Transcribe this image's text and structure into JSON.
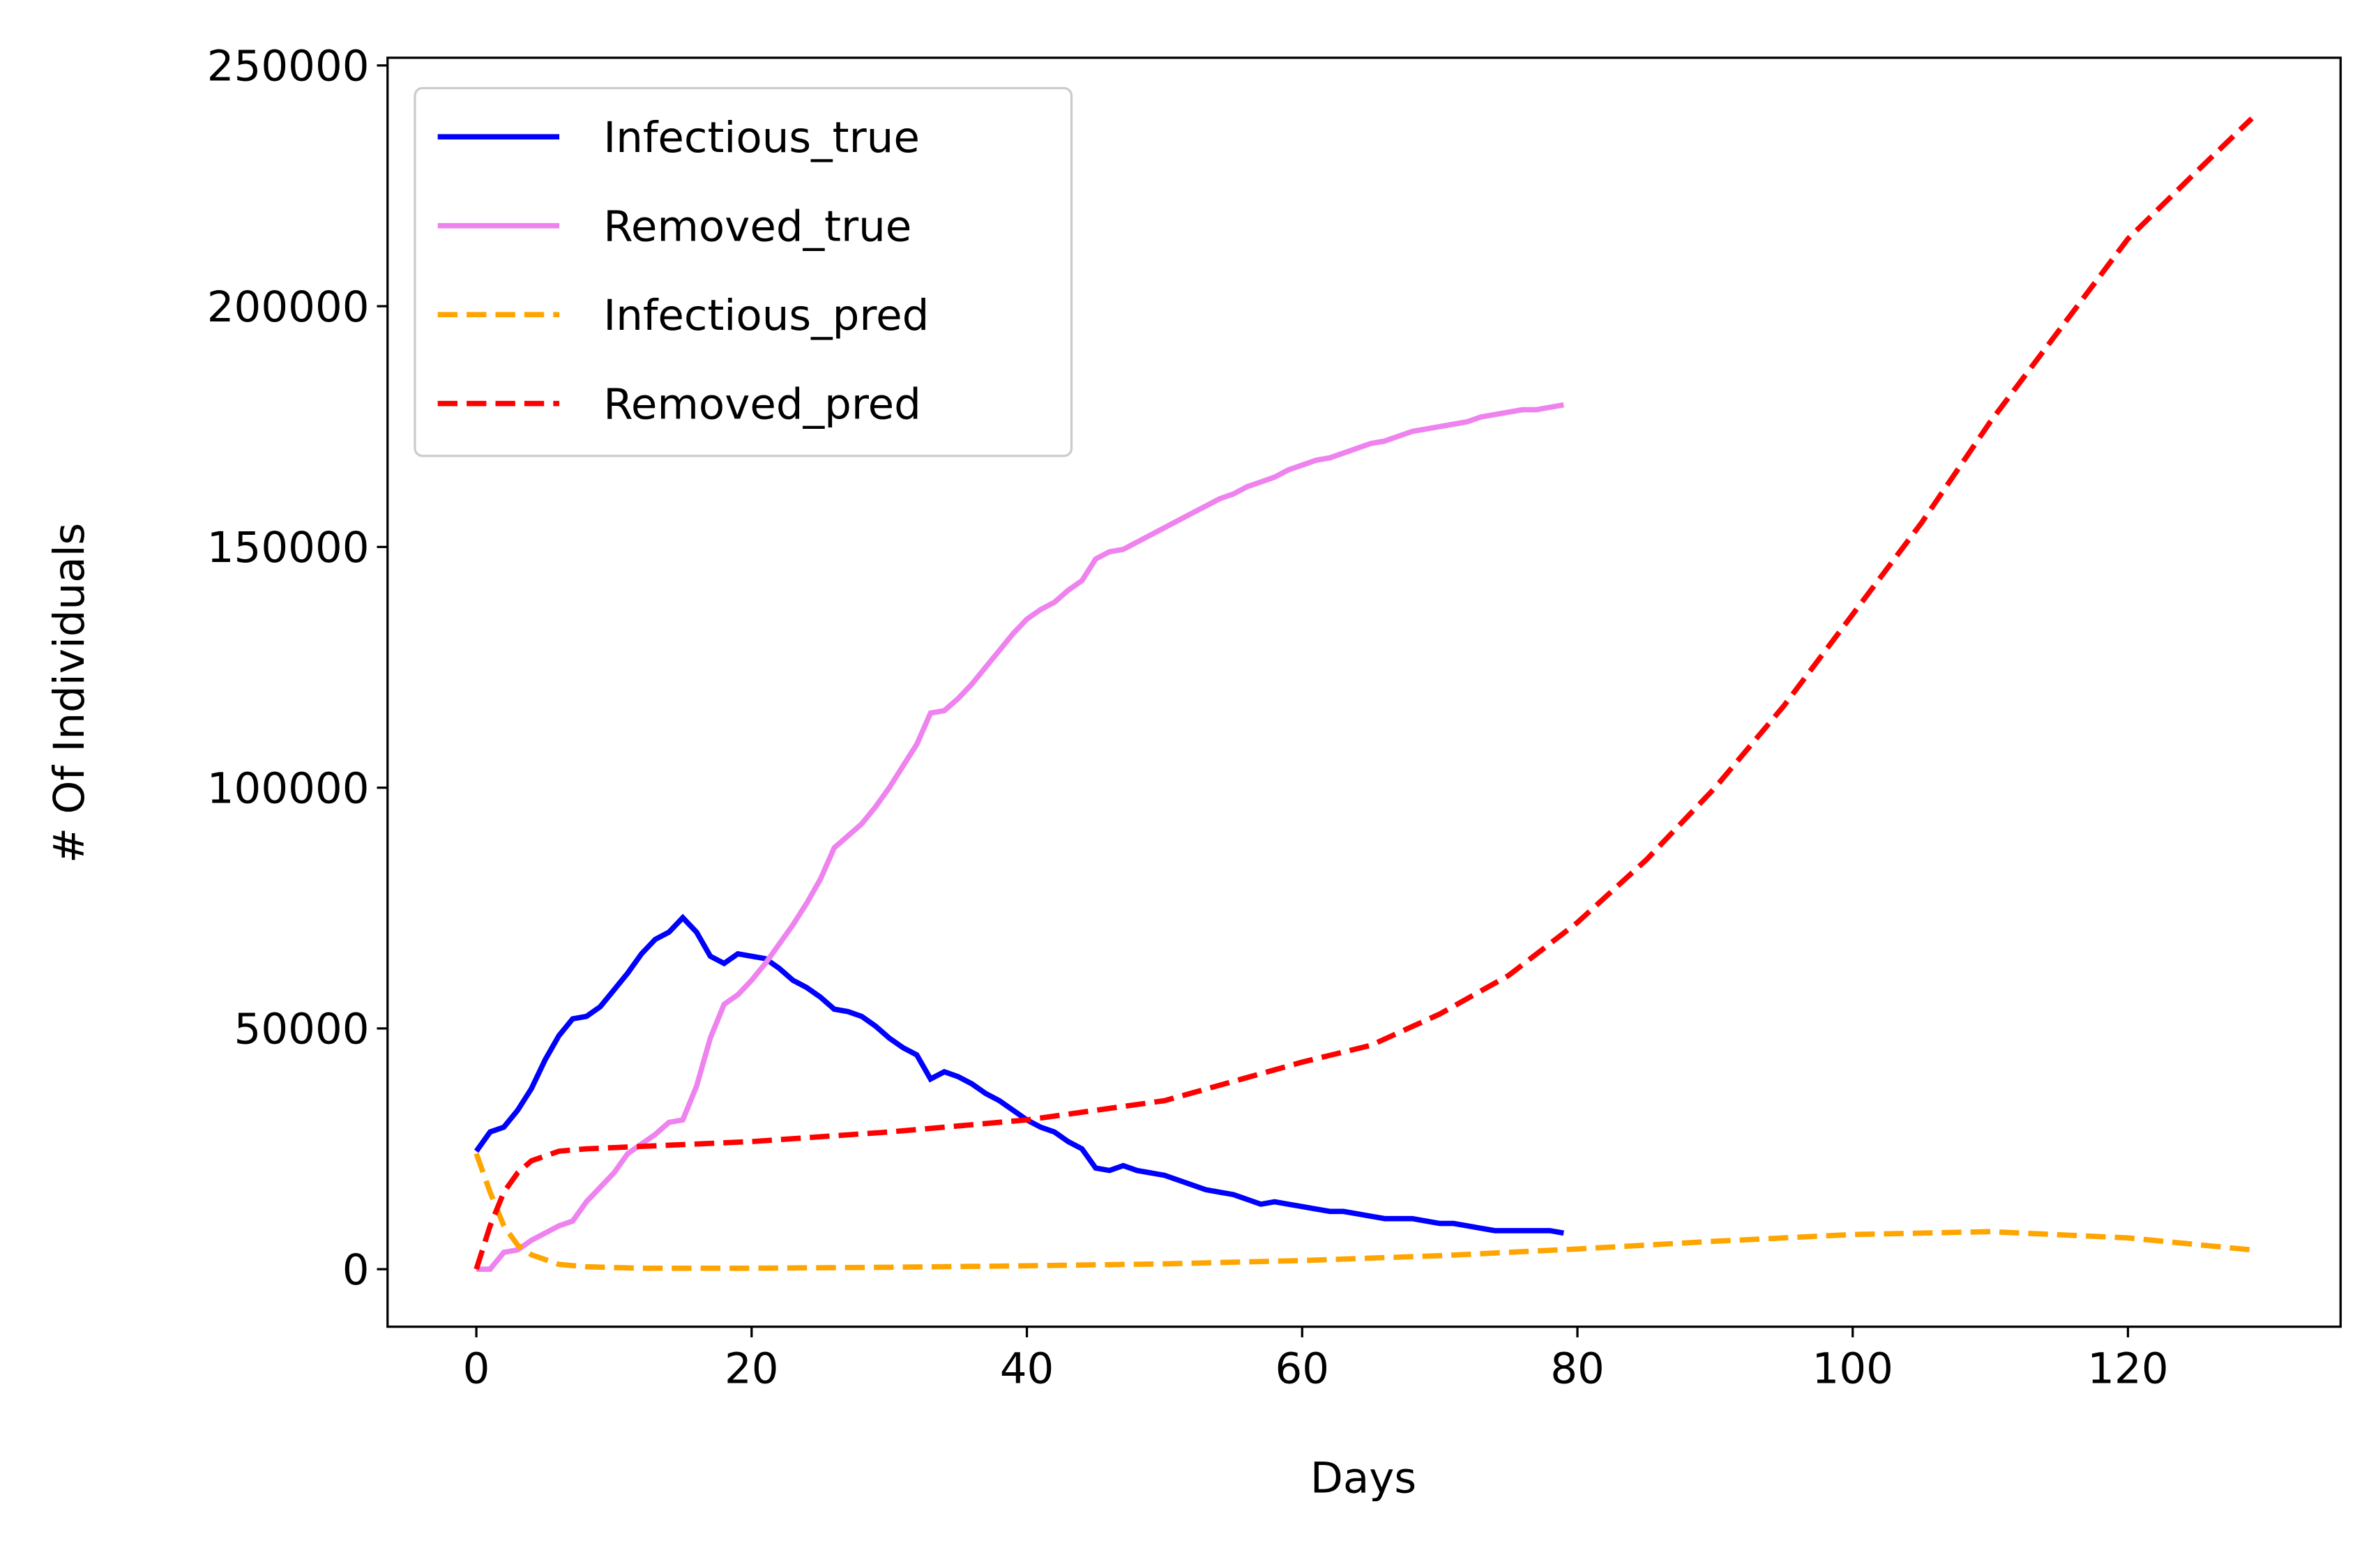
{
  "chart_data": {
    "type": "line",
    "x_label": "Days",
    "y_label": "# Of Individuals",
    "xlim": [
      -6.45,
      135.45
    ],
    "xticks": [
      0,
      20,
      40,
      60,
      80,
      100,
      120
    ],
    "ylim": [
      -11950,
      251600
    ],
    "yticks": [
      0,
      50000,
      100000,
      150000,
      200000,
      250000
    ],
    "legend": "upper left",
    "series": [
      {
        "name": "Infectious_true",
        "color": "#0000ff",
        "style": "solid",
        "x": [
          0,
          1,
          2,
          3,
          4,
          5,
          6,
          7,
          8,
          9,
          10,
          11,
          12,
          13,
          14,
          15,
          16,
          17,
          18,
          19,
          20,
          21,
          22,
          23,
          24,
          25,
          26,
          27,
          28,
          29,
          30,
          31,
          32,
          33,
          34,
          35,
          36,
          37,
          38,
          39,
          40,
          41,
          42,
          43,
          44,
          45,
          46,
          47,
          48,
          49,
          50,
          51,
          52,
          53,
          54,
          55,
          56,
          57,
          58,
          59,
          60,
          61,
          62,
          63,
          64,
          65,
          66,
          67,
          68,
          69,
          70,
          71,
          72,
          73,
          74,
          75,
          76,
          77,
          78,
          79
        ],
        "values": [
          24500,
          28500,
          29500,
          33000,
          37500,
          43500,
          48500,
          52000,
          52500,
          54500,
          58000,
          61500,
          65500,
          68500,
          70000,
          73000,
          70000,
          65000,
          63500,
          65500,
          65000,
          64500,
          62500,
          60000,
          58500,
          56500,
          54000,
          53500,
          52500,
          50500,
          48000,
          46000,
          44500,
          39500,
          41000,
          40000,
          38500,
          36500,
          35000,
          33000,
          31000,
          29500,
          28500,
          26500,
          25000,
          21000,
          20500,
          21500,
          20500,
          20000,
          19500,
          18500,
          17500,
          16500,
          16000,
          15500,
          14500,
          13500,
          14000,
          13500,
          13000,
          12500,
          12000,
          12000,
          11500,
          11000,
          10500,
          10500,
          10500,
          10000,
          9500,
          9500,
          9000,
          8500,
          8000,
          8000,
          8000,
          8000,
          8000,
          7500
        ]
      },
      {
        "name": "Removed_true",
        "color": "#ee82ee",
        "style": "solid",
        "x": [
          0,
          1,
          2,
          3,
          4,
          5,
          6,
          7,
          8,
          9,
          10,
          11,
          12,
          13,
          14,
          15,
          16,
          17,
          18,
          19,
          20,
          21,
          22,
          23,
          24,
          25,
          26,
          27,
          28,
          29,
          30,
          31,
          32,
          33,
          34,
          35,
          36,
          37,
          38,
          39,
          40,
          41,
          42,
          43,
          44,
          45,
          46,
          47,
          48,
          49,
          50,
          51,
          52,
          53,
          54,
          55,
          56,
          57,
          58,
          59,
          60,
          61,
          62,
          63,
          64,
          65,
          66,
          67,
          68,
          69,
          70,
          71,
          72,
          73,
          74,
          75,
          76,
          77,
          78,
          79
        ],
        "values": [
          0,
          0,
          3500,
          4000,
          6000,
          7500,
          9000,
          10000,
          14000,
          17000,
          20000,
          24000,
          26000,
          28000,
          30500,
          31000,
          38000,
          48000,
          55000,
          57000,
          60000,
          63500,
          67500,
          71500,
          76000,
          81000,
          87500,
          90000,
          92500,
          96000,
          100000,
          104500,
          109000,
          115500,
          116000,
          118500,
          121500,
          125000,
          128500,
          132000,
          135000,
          137000,
          138500,
          141000,
          143000,
          147500,
          149000,
          149500,
          151000,
          152500,
          154000,
          155500,
          157000,
          158500,
          160000,
          161000,
          162500,
          163500,
          164500,
          166000,
          167000,
          168000,
          168500,
          169500,
          170500,
          171500,
          172000,
          173000,
          174000,
          174500,
          175000,
          175500,
          176000,
          177000,
          177500,
          178000,
          178500,
          178500,
          179000,
          179500
        ]
      },
      {
        "name": "Infectious_pred",
        "color": "#ffa500",
        "style": "dashed",
        "x": [
          0,
          1,
          2,
          3,
          4,
          6,
          8,
          12,
          20,
          30,
          40,
          50,
          60,
          70,
          80,
          90,
          100,
          110,
          120,
          129
        ],
        "values": [
          24000,
          16000,
          9000,
          5000,
          3000,
          1000,
          500,
          200,
          200,
          400,
          700,
          1100,
          1800,
          2800,
          4200,
          5800,
          7200,
          7800,
          6500,
          4000
        ]
      },
      {
        "name": "Removed_pred",
        "color": "#ff0000",
        "style": "dashed",
        "x": [
          0,
          1,
          2,
          3,
          4,
          6,
          8,
          12,
          20,
          30,
          40,
          50,
          60,
          65,
          70,
          75,
          80,
          85,
          90,
          95,
          100,
          105,
          110,
          115,
          120,
          125,
          129
        ],
        "values": [
          0,
          9000,
          16000,
          20000,
          22500,
          24500,
          25000,
          25500,
          26500,
          28500,
          31000,
          35000,
          43000,
          46500,
          53000,
          61000,
          72000,
          85000,
          100000,
          117000,
          136000,
          155000,
          176000,
          195000,
          214000,
          228000,
          239000
        ]
      }
    ]
  }
}
